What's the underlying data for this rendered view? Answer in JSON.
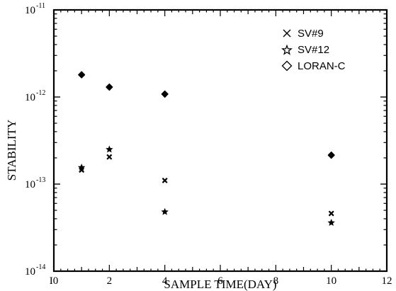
{
  "chart_data": {
    "type": "scatter",
    "xlabel": "SAMPLE TIME(DAY)",
    "ylabel": "STABILITY",
    "xlim": [
      0,
      12
    ],
    "ylim": [
      1e-14,
      1e-11
    ],
    "yscale": "log",
    "x_ticks": [
      0,
      2,
      4,
      6,
      8,
      10,
      12
    ],
    "x_tick_labels": [
      "I0",
      "2",
      "4",
      "6",
      "8",
      "10",
      "12"
    ],
    "y_ticks": [
      1e-14,
      1e-13,
      1e-12,
      1e-11
    ],
    "y_tick_labels": [
      {
        "base": "10",
        "exp": "-14"
      },
      {
        "base": "10",
        "exp": "-13"
      },
      {
        "base": "10",
        "exp": "-12"
      },
      {
        "base": "10",
        "exp": "-11"
      }
    ],
    "grid": false,
    "legend_position": "top-right",
    "series": [
      {
        "name": "SV#9",
        "marker": "x",
        "x": [
          1,
          2,
          4,
          10
        ],
        "y": [
          1.45e-13,
          2.05e-13,
          1.1e-13,
          4.6e-14
        ]
      },
      {
        "name": "SV#12",
        "marker": "star",
        "x": [
          1,
          2,
          4,
          10
        ],
        "y": [
          1.55e-13,
          2.5e-13,
          4.8e-14,
          3.6e-14
        ]
      },
      {
        "name": "LORAN-C",
        "marker": "diamond",
        "x": [
          1,
          2,
          4,
          10
        ],
        "y": [
          1.8e-12,
          1.3e-12,
          1.08e-12,
          2.15e-13
        ]
      }
    ]
  }
}
